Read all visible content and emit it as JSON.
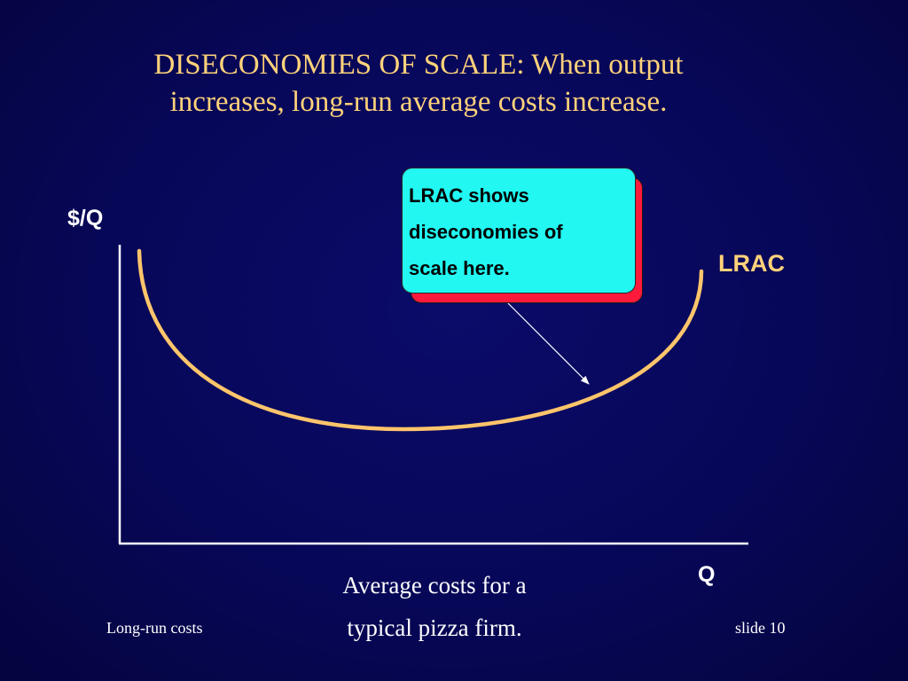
{
  "title": {
    "line1": "DISECONOMIES OF SCALE:  When output",
    "line2": "increases, long-run average costs increase."
  },
  "diagram": {
    "y_axis_label": "$/Q",
    "x_axis_label": "Q",
    "curve_label": "LRAC",
    "callout": {
      "line1": "LRAC shows",
      "line2": "diseconomies of",
      "line3": "scale here."
    }
  },
  "caption": {
    "line1": "Average costs for a",
    "line2": "typical pizza firm."
  },
  "footer": {
    "left": "Long-run costs",
    "right": "slide 10"
  },
  "colors": {
    "background": "#070758",
    "title_text": "#ffd27a",
    "curve": "#ffc56b",
    "callout_fill": "#22f7f2",
    "callout_shadow": "#ff1a3c",
    "axis": "#ffffff"
  }
}
